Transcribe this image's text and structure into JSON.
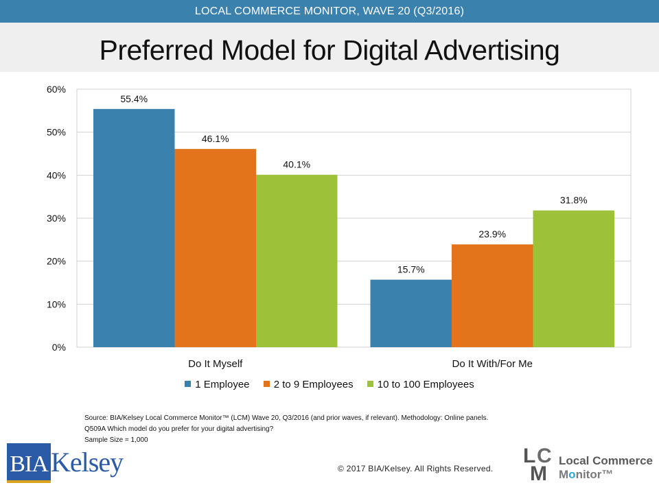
{
  "header": {
    "banner": "LOCAL COMMERCE MONITOR, WAVE 20 (Q3/2016)",
    "title": "Preferred Model for Digital Advertising"
  },
  "colors": {
    "banner_bg": "#3b81ae",
    "series": [
      "#3b81ae",
      "#e4741c",
      "#9dc23a"
    ]
  },
  "chart_data": {
    "type": "bar",
    "title": "Preferred Model for Digital Advertising",
    "xlabel": "",
    "ylabel": "",
    "categories": [
      "Do It Myself",
      "Do It With/For Me"
    ],
    "series": [
      {
        "name": "1 Employee",
        "values": [
          55.4,
          15.7
        ],
        "labels": [
          "55.4%",
          "15.7%"
        ]
      },
      {
        "name": "2 to 9 Employees",
        "values": [
          46.1,
          23.9
        ],
        "labels": [
          "46.1%",
          "23.9%"
        ]
      },
      {
        "name": "10 to 100 Employees",
        "values": [
          40.1,
          31.8
        ],
        "labels": [
          "40.1%",
          "31.8%"
        ]
      }
    ],
    "ylim": [
      0,
      60
    ],
    "yticks": [
      0,
      10,
      20,
      30,
      40,
      50,
      60
    ],
    "ytick_labels": [
      "0%",
      "10%",
      "20%",
      "30%",
      "40%",
      "50%",
      "60%"
    ],
    "grid": true,
    "legend_position": "bottom"
  },
  "footer": {
    "source_line1": "Source: BIA/Kelsey Local Commerce Monitor™ (LCM) Wave 20, Q3/2016 (and prior waves, if relevant). Methodology: Online panels.",
    "source_line2": "Q509A Which model do you prefer for your digital advertising?",
    "source_line3": "Sample Size = 1,000",
    "copyright": "© 2017 BIA/Kelsey. All Rights Reserved."
  },
  "logos": {
    "bia_box": "BIA",
    "bia_name": "Kelsey",
    "lcm_l": "L",
    "lcm_c": "C",
    "lcm_m": "M",
    "lcm_line1": "Local Commerce",
    "lcm_line2_pre": "M",
    "lcm_line2_o": "o",
    "lcm_line2_post": "nitor™"
  }
}
